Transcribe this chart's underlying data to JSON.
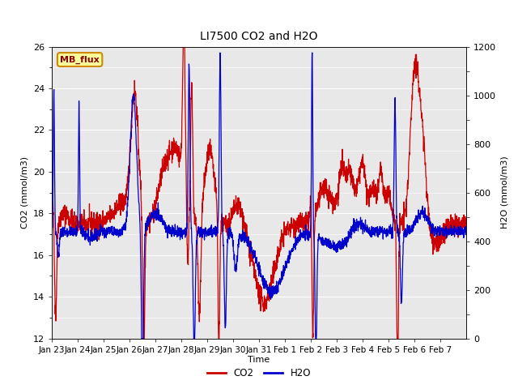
{
  "title": "LI7500 CO2 and H2O",
  "xlabel": "Time",
  "ylabel_left": "CO2 (mmol/m3)",
  "ylabel_right": "H2O (mmol/m3)",
  "co2_ylim": [
    12,
    26
  ],
  "h2o_ylim": [
    0,
    1200
  ],
  "co2_color": "#cc0000",
  "h2o_color": "#0000cc",
  "bg_color": "#ffffff",
  "plot_bg_color": "#e8e8e8",
  "annotation_text": "MB_flux",
  "annotation_bg": "#ffff99",
  "annotation_border": "#cc8800",
  "tick_labels": [
    "Jan 23",
    "Jan 24",
    "Jan 25",
    "Jan 26",
    "Jan 27",
    "Jan 28",
    "Jan 29",
    "Jan 30",
    "Jan 31",
    "Feb 1",
    "Feb 2",
    "Feb 3",
    "Feb 4",
    "Feb 5",
    "Feb 6",
    "Feb 7"
  ],
  "linewidth": 0.9,
  "title_fontsize": 10,
  "label_fontsize": 8,
  "tick_fontsize": 7.5
}
